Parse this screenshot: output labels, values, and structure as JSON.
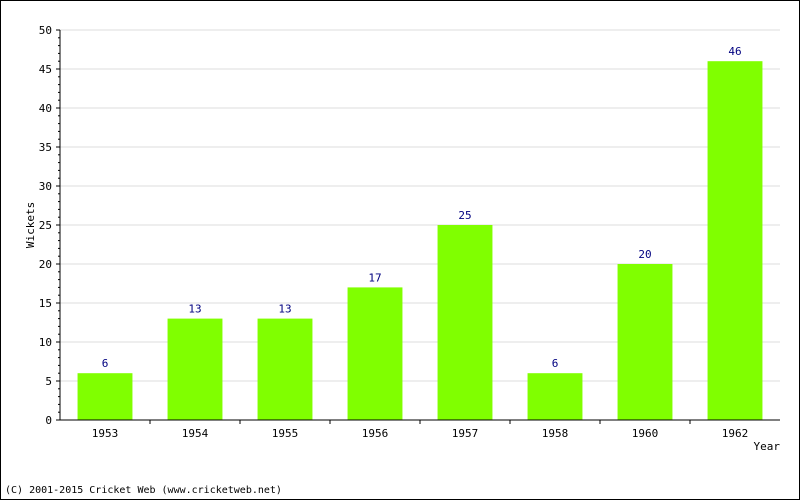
{
  "chart_data": {
    "type": "bar",
    "categories": [
      "1953",
      "1954",
      "1955",
      "1956",
      "1957",
      "1958",
      "1960",
      "1962"
    ],
    "values": [
      6,
      13,
      13,
      17,
      25,
      6,
      20,
      46
    ],
    "title": "",
    "xlabel": "Year",
    "ylabel": "Wickets",
    "ylim": [
      0,
      50
    ],
    "yticks": [
      0,
      5,
      10,
      15,
      20,
      25,
      30,
      35,
      40,
      45,
      50
    ],
    "grid": true,
    "bar_color": "#80ff00",
    "value_label_color": "#000080"
  },
  "footer": {
    "copyright": "(C) 2001-2015 Cricket Web (www.cricketweb.net)"
  }
}
